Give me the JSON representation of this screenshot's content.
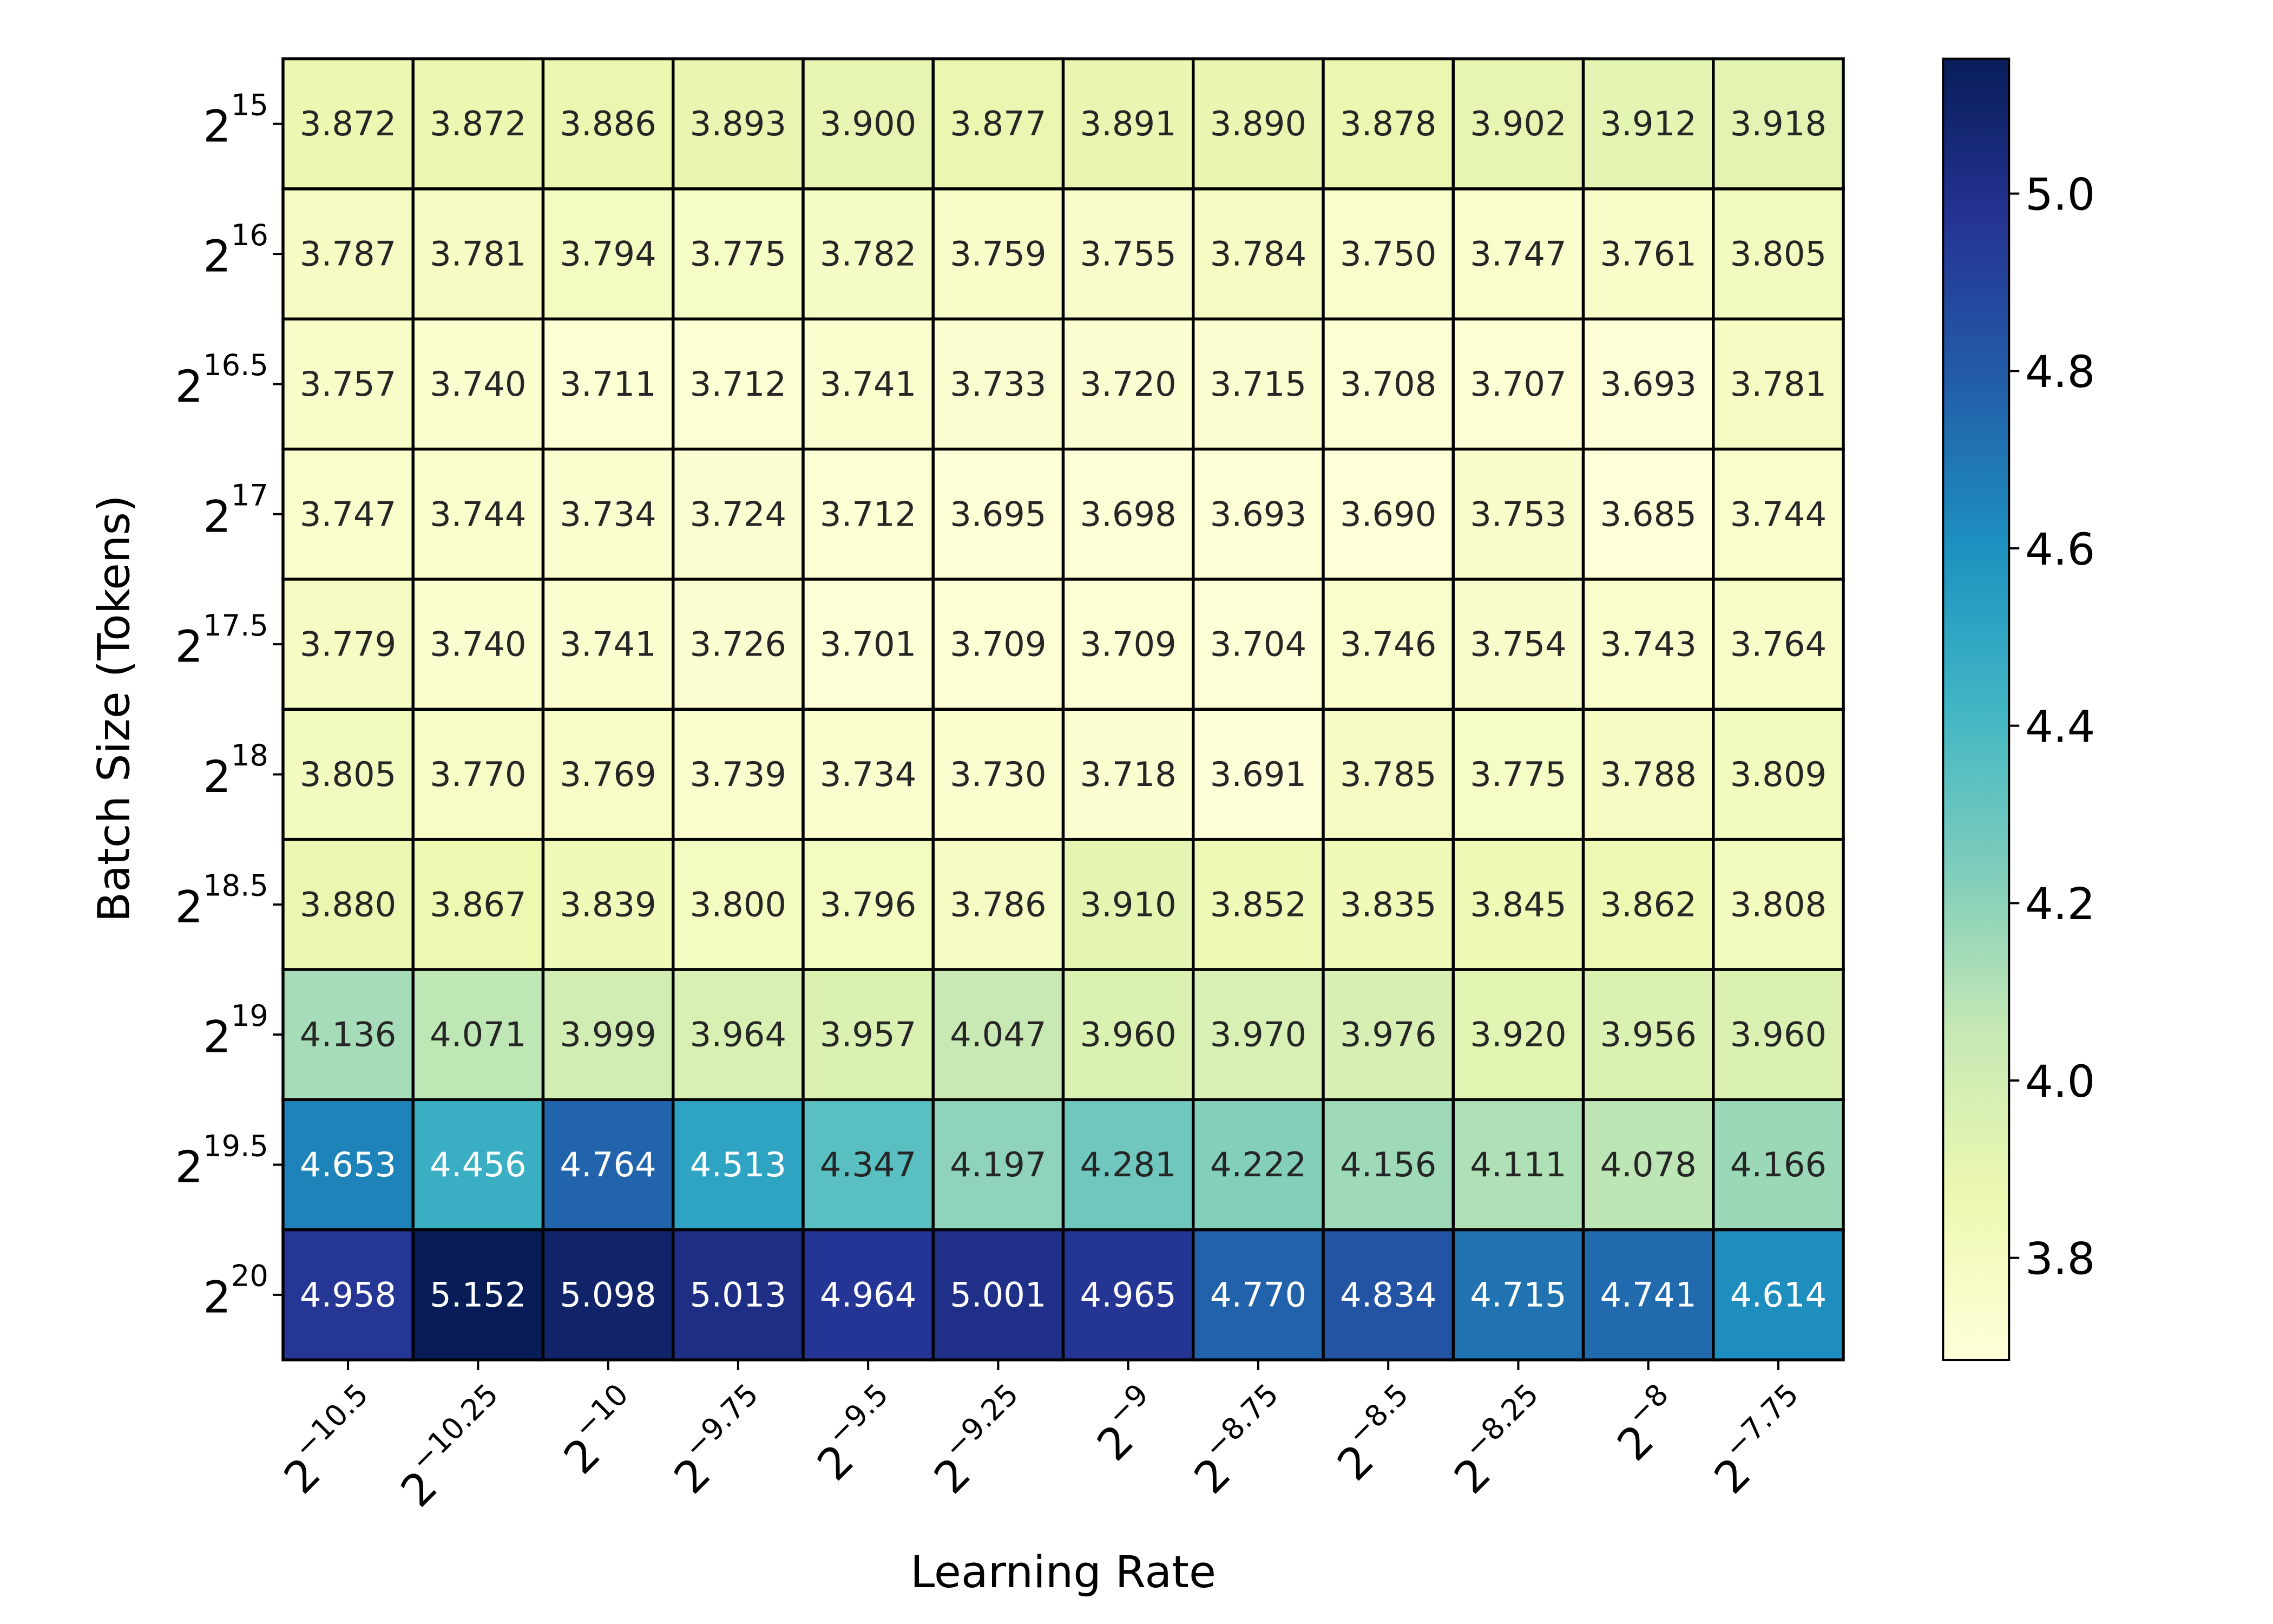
{
  "chart_data": {
    "type": "heatmap",
    "xlabel": "Learning Rate",
    "ylabel": "Batch Size (Tokens)",
    "x_tick_labels": [
      {
        "base": "2",
        "exp": "−10.5"
      },
      {
        "base": "2",
        "exp": "−10.25"
      },
      {
        "base": "2",
        "exp": "−10"
      },
      {
        "base": "2",
        "exp": "−9.75"
      },
      {
        "base": "2",
        "exp": "−9.5"
      },
      {
        "base": "2",
        "exp": "−9.25"
      },
      {
        "base": "2",
        "exp": "−9"
      },
      {
        "base": "2",
        "exp": "−8.75"
      },
      {
        "base": "2",
        "exp": "−8.5"
      },
      {
        "base": "2",
        "exp": "−8.25"
      },
      {
        "base": "2",
        "exp": "−8"
      },
      {
        "base": "2",
        "exp": "−7.75"
      }
    ],
    "y_tick_labels": [
      {
        "base": "2",
        "exp": "15"
      },
      {
        "base": "2",
        "exp": "16"
      },
      {
        "base": "2",
        "exp": "16.5"
      },
      {
        "base": "2",
        "exp": "17"
      },
      {
        "base": "2",
        "exp": "17.5"
      },
      {
        "base": "2",
        "exp": "18"
      },
      {
        "base": "2",
        "exp": "18.5"
      },
      {
        "base": "2",
        "exp": "19"
      },
      {
        "base": "2",
        "exp": "19.5"
      },
      {
        "base": "2",
        "exp": "20"
      }
    ],
    "values": [
      [
        3.872,
        3.872,
        3.886,
        3.893,
        3.9,
        3.877,
        3.891,
        3.89,
        3.878,
        3.902,
        3.912,
        3.918
      ],
      [
        3.787,
        3.781,
        3.794,
        3.775,
        3.782,
        3.759,
        3.755,
        3.784,
        3.75,
        3.747,
        3.761,
        3.805
      ],
      [
        3.757,
        3.74,
        3.711,
        3.712,
        3.741,
        3.733,
        3.72,
        3.715,
        3.708,
        3.707,
        3.693,
        3.781
      ],
      [
        3.747,
        3.744,
        3.734,
        3.724,
        3.712,
        3.695,
        3.698,
        3.693,
        3.69,
        3.753,
        3.685,
        3.744
      ],
      [
        3.779,
        3.74,
        3.741,
        3.726,
        3.701,
        3.709,
        3.709,
        3.704,
        3.746,
        3.754,
        3.743,
        3.764
      ],
      [
        3.805,
        3.77,
        3.769,
        3.739,
        3.734,
        3.73,
        3.718,
        3.691,
        3.785,
        3.775,
        3.788,
        3.809
      ],
      [
        3.88,
        3.867,
        3.839,
        3.8,
        3.796,
        3.786,
        3.91,
        3.852,
        3.835,
        3.845,
        3.862,
        3.808
      ],
      [
        4.136,
        4.071,
        3.999,
        3.964,
        3.957,
        4.047,
        3.96,
        3.97,
        3.976,
        3.92,
        3.956,
        3.96
      ],
      [
        4.653,
        4.456,
        4.764,
        4.513,
        4.347,
        4.197,
        4.281,
        4.222,
        4.156,
        4.111,
        4.078,
        4.166
      ],
      [
        4.958,
        5.152,
        5.098,
        5.013,
        4.964,
        5.001,
        4.965,
        4.77,
        4.834,
        4.715,
        4.741,
        4.614
      ]
    ],
    "colormap": "YlGnBu",
    "colormap_stops": [
      "#ffffd9",
      "#edf8b1",
      "#c7e9b4",
      "#7fcdbb",
      "#41b6c4",
      "#1d91c0",
      "#225ea8",
      "#253494",
      "#081d58"
    ],
    "color_range": [
      3.685,
      5.152
    ],
    "colorbar_ticks": [
      "3.8",
      "4.0",
      "4.2",
      "4.4",
      "4.6",
      "4.8",
      "5.0"
    ],
    "cell_border_color": "#000000",
    "grid": false,
    "legend": "colorbar-right"
  }
}
